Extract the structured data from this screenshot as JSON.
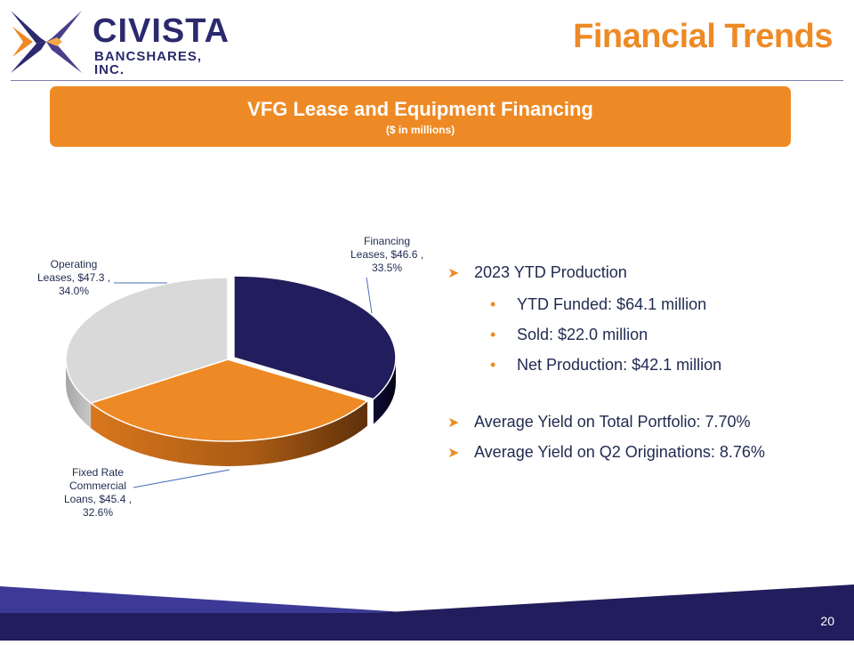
{
  "brand": {
    "name": "CIVISTA",
    "subtitle": "BANCSHARES, INC."
  },
  "header": {
    "title": "Financial Trends"
  },
  "banner": {
    "title": "VFG Lease and Equipment Financing",
    "subtitle": "($ in millions)"
  },
  "colors": {
    "accent": "#ee8a25",
    "navy": "#221d5c",
    "gray": "#d9d9d9",
    "text": "#1f2a4f"
  },
  "chart_data": {
    "type": "pie",
    "title": "VFG Lease and Equipment Financing",
    "units": "$ in millions",
    "slices": [
      {
        "name": "Financing Leases",
        "value": 46.6,
        "percent": "33.5%",
        "label_lines": [
          "Financing",
          "Leases, $46.6 ,",
          "33.5%"
        ]
      },
      {
        "name": "Fixed Rate Commercial Loans",
        "value": 45.4,
        "percent": "32.6%",
        "label_lines": [
          "Fixed Rate",
          "Commercial",
          "Loans, $45.4 ,",
          "32.6%"
        ]
      },
      {
        "name": "Operating Leases",
        "value": 47.3,
        "percent": "34.0%",
        "label_lines": [
          "Operating",
          "Leases, $47.3 ,",
          "34.0%"
        ]
      }
    ]
  },
  "bullets": {
    "production": "2023 YTD Production",
    "funded": "YTD Funded: $64.1 million",
    "sold": "Sold: $22.0 million",
    "net": "Net Production: $42.1 million",
    "yield_total": "Average Yield on Total Portfolio: 7.70%",
    "yield_q2": "Average Yield on Q2 Originations: 8.76%"
  },
  "footer": {
    "page_number": "20"
  }
}
